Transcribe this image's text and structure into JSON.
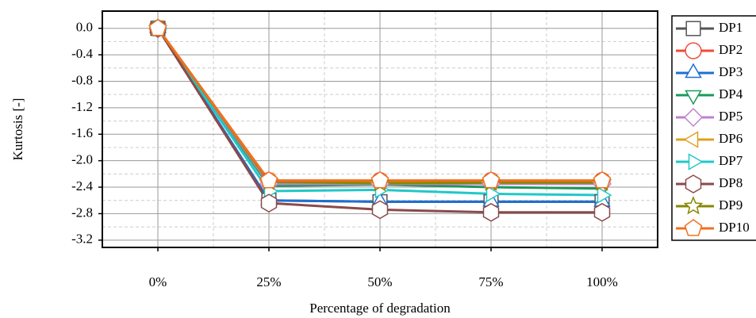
{
  "chart_data": {
    "type": "line",
    "xlabel": "Percentage of degradation",
    "ylabel": "Kurtosis [-]",
    "categories": [
      "0%",
      "25%",
      "50%",
      "75%",
      "100%"
    ],
    "ylim": [
      -3.31,
      0.26
    ],
    "yticks": [
      {
        "value": 0,
        "label": "0.0"
      },
      -0.4,
      -0.8,
      -1.2,
      -1.6,
      {
        "value": -2,
        "label": "-2.0"
      },
      -2.4,
      -2.8,
      -3.2
    ],
    "grid": true,
    "legend": "outside-right",
    "series": [
      {
        "name": "DP1",
        "color": "#555555",
        "marker": "square",
        "values": [
          0,
          -2.6,
          -2.62,
          -2.62,
          -2.62
        ]
      },
      {
        "name": "DP2",
        "color": "#f04a3a",
        "marker": "circle",
        "values": [
          0,
          -2.3,
          -2.3,
          -2.3,
          -2.3
        ]
      },
      {
        "name": "DP3",
        "color": "#1f6fd0",
        "marker": "triangle-up",
        "values": [
          0,
          -2.6,
          -2.62,
          -2.62,
          -2.62
        ]
      },
      {
        "name": "DP4",
        "color": "#1a9a5a",
        "marker": "triangle-down",
        "values": [
          0,
          -2.38,
          -2.36,
          -2.4,
          -2.42
        ]
      },
      {
        "name": "DP5",
        "color": "#c080d0",
        "marker": "diamond",
        "values": [
          0,
          -2.35,
          -2.35,
          -2.35,
          -2.35
        ]
      },
      {
        "name": "DP6",
        "color": "#e0a020",
        "marker": "triangle-left",
        "values": [
          0,
          -2.3,
          -2.32,
          -2.32,
          -2.32
        ]
      },
      {
        "name": "DP7",
        "color": "#20c8c8",
        "marker": "triangle-right",
        "values": [
          0,
          -2.46,
          -2.44,
          -2.5,
          -2.52
        ]
      },
      {
        "name": "DP8",
        "color": "#8b4a4a",
        "marker": "hexagon",
        "values": [
          0,
          -2.64,
          -2.74,
          -2.78,
          -2.78
        ]
      },
      {
        "name": "DP9",
        "color": "#888800",
        "marker": "star",
        "values": [
          0,
          -2.32,
          -2.34,
          -2.33,
          -2.33
        ]
      },
      {
        "name": "DP10",
        "color": "#f07020",
        "marker": "pentagon",
        "values": [
          0,
          -2.3,
          -2.3,
          -2.3,
          -2.3
        ]
      }
    ]
  }
}
